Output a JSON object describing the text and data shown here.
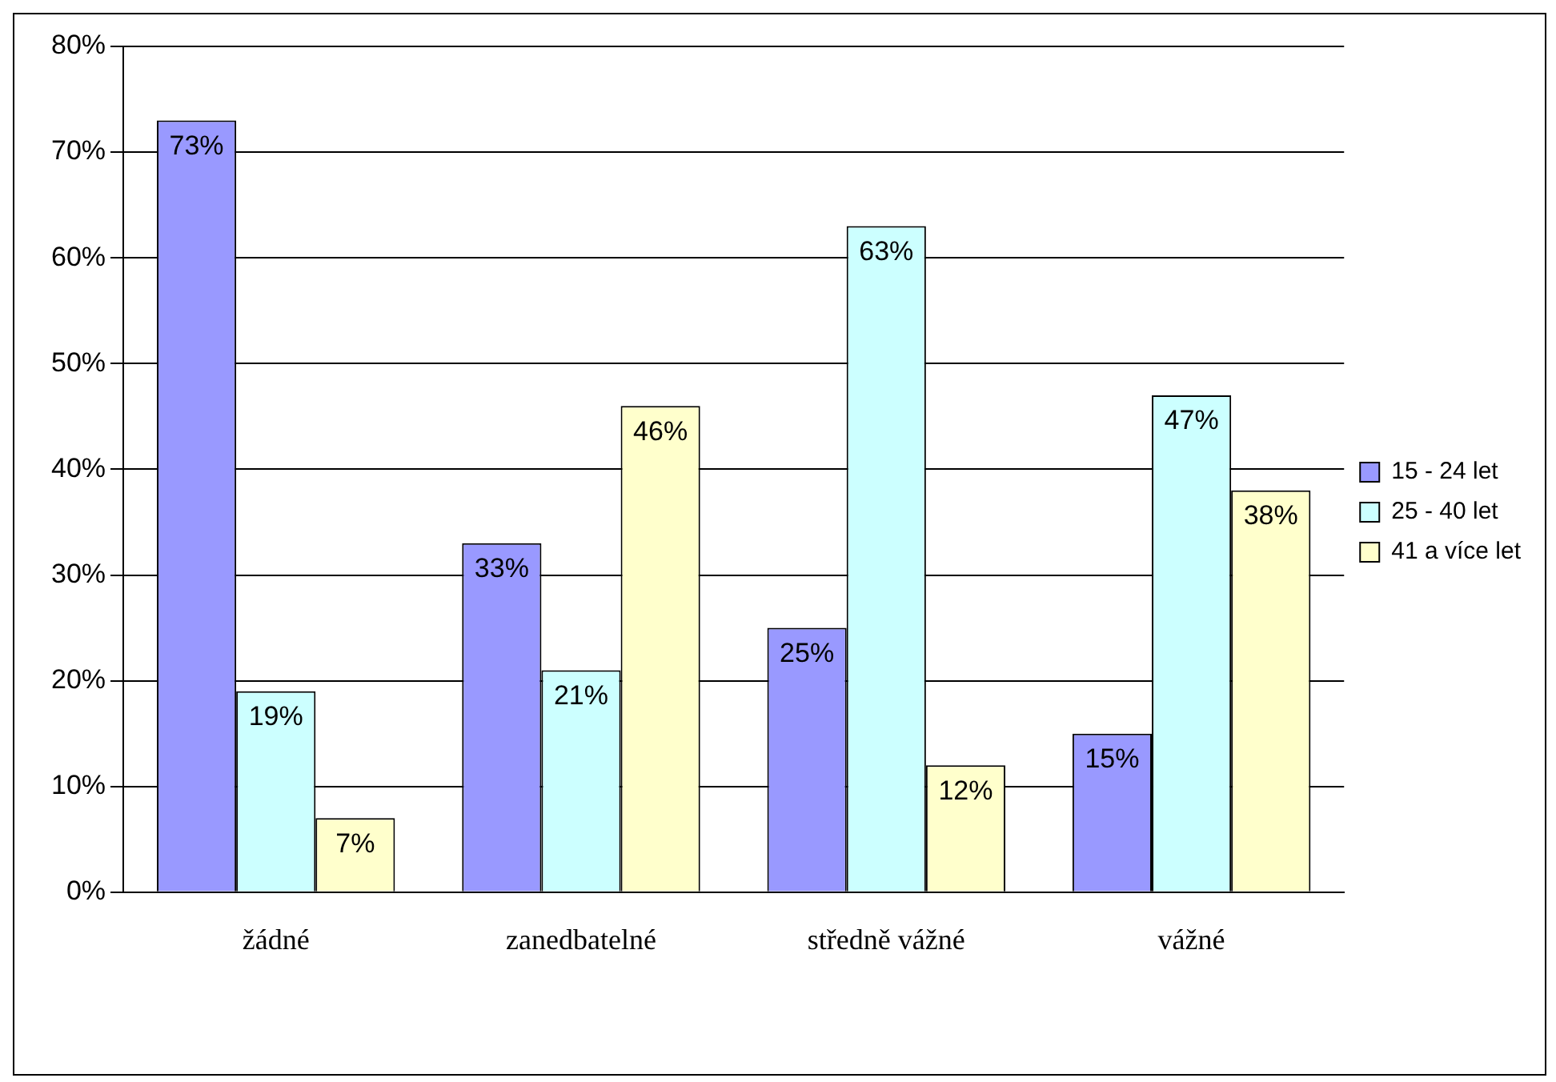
{
  "chart_data": {
    "type": "bar",
    "categories": [
      "žádné",
      "zanedbatelné",
      "středně vážné",
      "vážné"
    ],
    "series": [
      {
        "name": "15 - 24 let",
        "color": "#9999ff",
        "values": [
          73,
          33,
          25,
          15
        ],
        "value_labels": [
          "73%",
          "33%",
          "25%",
          "15%"
        ]
      },
      {
        "name": "25 - 40 let",
        "color": "#ccffff",
        "values": [
          19,
          21,
          63,
          47
        ],
        "value_labels": [
          "19%",
          "21%",
          "63%",
          "47%"
        ]
      },
      {
        "name": "41 a více let",
        "color": "#ffffcc",
        "values": [
          7,
          46,
          12,
          38
        ],
        "value_labels": [
          "7%",
          "46%",
          "12%",
          "38%"
        ]
      }
    ],
    "ylim": [
      0,
      80
    ],
    "yticks": [
      {
        "value": 0,
        "label": "0%"
      },
      {
        "value": 10,
        "label": "10%"
      },
      {
        "value": 20,
        "label": "20%"
      },
      {
        "value": 30,
        "label": "30%"
      },
      {
        "value": 40,
        "label": "40%"
      },
      {
        "value": 50,
        "label": "50%"
      },
      {
        "value": 60,
        "label": "60%"
      },
      {
        "value": 70,
        "label": "70%"
      },
      {
        "value": 80,
        "label": "80%"
      }
    ],
    "grid": "y",
    "legend": "right"
  }
}
